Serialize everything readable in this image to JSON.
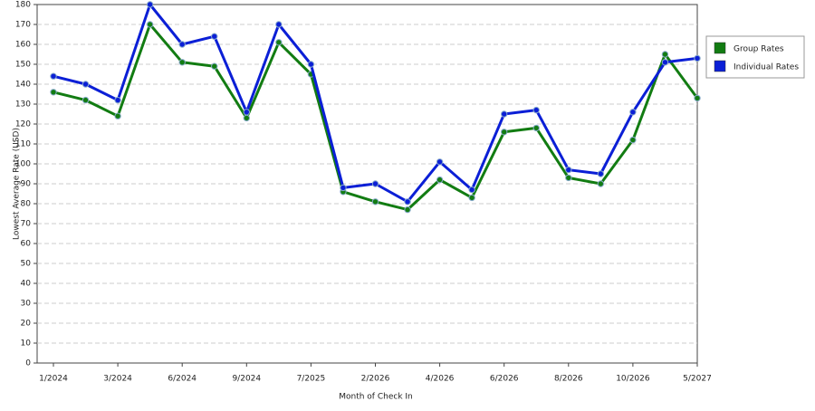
{
  "chart_data": {
    "type": "line",
    "x_label": "Month of Check In",
    "y_label": "Lowest Average Rate (USD)",
    "categories": [
      "1/2024",
      null,
      "3/2024",
      null,
      "6/2024",
      null,
      "9/2024",
      null,
      "7/2025",
      null,
      "2/2026",
      null,
      "4/2026",
      null,
      "6/2026",
      null,
      "8/2026",
      null,
      "10/2026",
      null,
      "5/2027"
    ],
    "series": [
      {
        "name": "Group Rates",
        "color": "#127c12",
        "values": [
          136,
          132,
          124,
          170,
          151,
          149,
          123,
          161,
          145,
          86,
          81,
          77,
          92,
          83,
          116,
          118,
          93,
          90,
          112,
          155,
          133
        ]
      },
      {
        "name": "Individual Rates",
        "color": "#0b1fd6",
        "values": [
          144,
          140,
          132,
          180,
          160,
          164,
          126,
          170,
          150,
          88,
          90,
          81,
          101,
          87,
          125,
          127,
          97,
          95,
          126,
          151,
          153
        ]
      }
    ],
    "ylim": [
      0,
      180
    ],
    "yticks": [
      0,
      10,
      20,
      30,
      40,
      50,
      60,
      70,
      80,
      90,
      100,
      110,
      120,
      130,
      140,
      150,
      160,
      170,
      180
    ],
    "grid": true,
    "legend": "right"
  }
}
